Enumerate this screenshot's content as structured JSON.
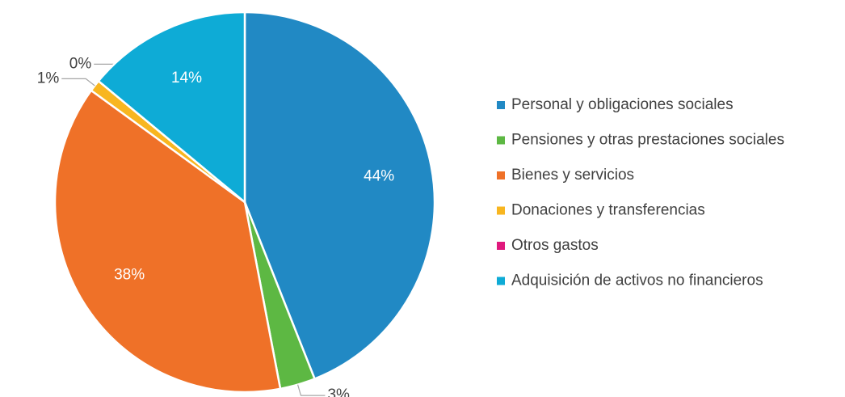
{
  "chart_data": {
    "type": "pie",
    "categories": [
      "Personal y obligaciones sociales",
      "Pensiones y otras prestaciones sociales",
      "Bienes y servicios",
      "Donaciones y transferencias",
      "Otros gastos",
      "Adquisición de activos no financieros"
    ],
    "values": [
      44,
      3,
      38,
      1,
      0,
      14
    ],
    "value_labels": [
      "44%",
      "3%",
      "38%",
      "1%",
      "0%",
      "14%"
    ],
    "colors": [
      "#2189c4",
      "#5db843",
      "#ef7128",
      "#f8b620",
      "#e0197d",
      "#0eabd6"
    ],
    "legend": "right"
  }
}
